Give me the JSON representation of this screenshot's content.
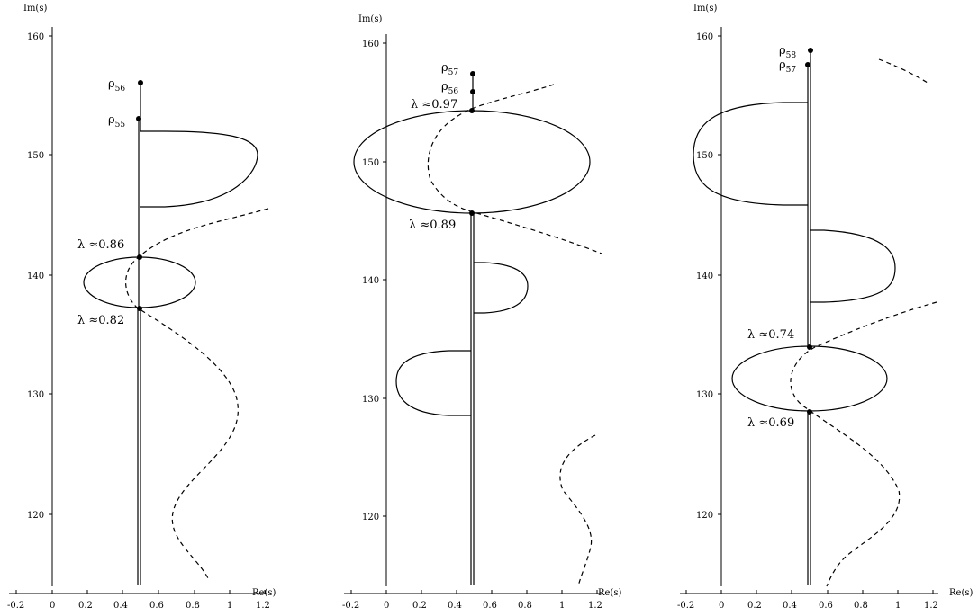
{
  "panels": [
    {
      "ylabel": "Im(s)",
      "xlabel": "Re(s)",
      "yticks": [
        "160",
        "150",
        "140",
        "130",
        "120"
      ],
      "xticks": [
        "-0.2",
        "0",
        "0.2",
        "0.4",
        "0.6",
        "0.8",
        "1",
        "1.2"
      ],
      "annotations": [
        {
          "sym": "ρ",
          "sub": "56"
        },
        {
          "sym": "ρ",
          "sub": "55"
        },
        {
          "text": "λ ≈0.86"
        },
        {
          "text": "λ ≈0.82"
        }
      ]
    },
    {
      "ylabel": "Im(s)",
      "xlabel": "Re(s)",
      "yticks": [
        "160",
        "150",
        "140",
        "130",
        "120"
      ],
      "xticks": [
        "-0.2",
        "0",
        "0.2",
        "0.4",
        "0.6",
        "0.8",
        "1",
        "1.2"
      ],
      "annotations": [
        {
          "sym": "ρ",
          "sub": "57"
        },
        {
          "sym": "ρ",
          "sub": "56"
        },
        {
          "text": "λ ≈0.97"
        },
        {
          "text": "λ ≈0.89"
        }
      ]
    },
    {
      "ylabel": "Im(s)",
      "xlabel": "Re(s)",
      "yticks": [
        "160",
        "150",
        "140",
        "130",
        "120"
      ],
      "xticks": [
        "-0.2",
        "0",
        "0.2",
        "0.4",
        "0.6",
        "0.8",
        "1",
        "1.2"
      ],
      "annotations": [
        {
          "sym": "ρ",
          "sub": "58"
        },
        {
          "sym": "ρ",
          "sub": "57"
        },
        {
          "text": "λ ≈0.74"
        },
        {
          "text": "λ ≈0.69"
        }
      ]
    }
  ]
}
